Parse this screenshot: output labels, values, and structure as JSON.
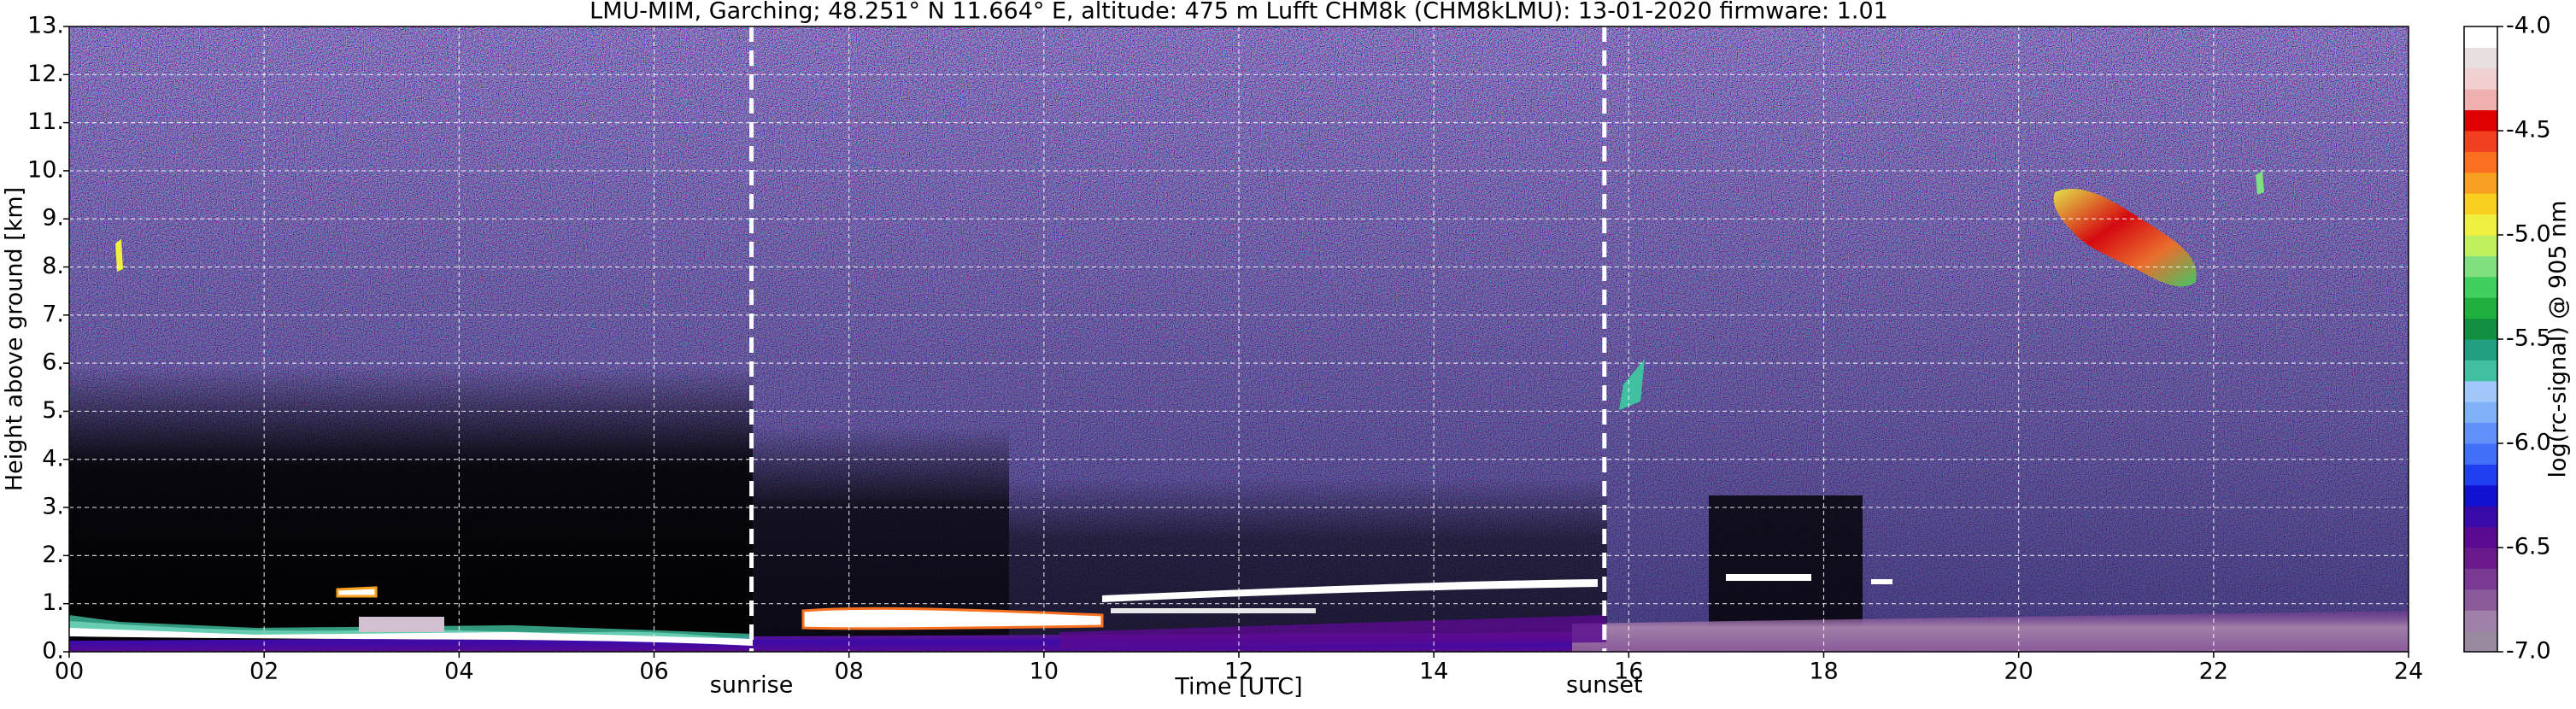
{
  "chart_data": {
    "type": "heatmap",
    "title": "LMU-MIM, Garching; 48.251° N 11.664° E, altitude: 475 m    Lufft CHM8k (CHM8kLMU): 13-01-2020    firmware: 1.01",
    "xlabel": "Time [UTC]",
    "ylabel": "Height above ground [km]",
    "xlim": [
      0,
      24
    ],
    "xticks": [
      {
        "value": 0,
        "label": "00"
      },
      {
        "value": 2,
        "label": "02"
      },
      {
        "value": 4,
        "label": "04"
      },
      {
        "value": 6,
        "label": "06"
      },
      {
        "value": 8,
        "label": "08"
      },
      10,
      12,
      14,
      16,
      18,
      20,
      22,
      24
    ],
    "ylim": [
      0,
      13
    ],
    "yticks": [
      {
        "value": 0,
        "label": "0."
      },
      {
        "value": 1,
        "label": "1."
      },
      {
        "value": 2,
        "label": "2."
      },
      {
        "value": 3,
        "label": "3."
      },
      {
        "value": 4,
        "label": "4."
      },
      {
        "value": 5,
        "label": "5."
      },
      {
        "value": 6,
        "label": "6."
      },
      {
        "value": 7,
        "label": "7."
      },
      {
        "value": 8,
        "label": "8."
      },
      {
        "value": 9,
        "label": "9."
      },
      {
        "value": 10,
        "label": "10."
      },
      {
        "value": 11,
        "label": "11."
      },
      {
        "value": 12,
        "label": "12."
      },
      {
        "value": 13,
        "label": "13."
      }
    ],
    "grid": true,
    "annotations": [
      {
        "text": "sunrise",
        "x": 7.0
      },
      {
        "text": "sunset",
        "x": 15.75
      }
    ],
    "colorbar": {
      "label": "log(rc-signal) @ 905 nm",
      "lim": [
        -7,
        -4
      ],
      "ticks": [
        {
          "value": -7,
          "label": "-7.0"
        },
        {
          "value": -6.5,
          "label": "-6.5"
        },
        {
          "value": -6,
          "label": "-6.0"
        },
        {
          "value": -5.5,
          "label": "-5.5"
        },
        {
          "value": -5,
          "label": "-5.0"
        },
        {
          "value": -4.5,
          "label": "-4.5"
        },
        {
          "value": -4,
          "label": "-4.0"
        }
      ],
      "colors": [
        "#9a8aa0",
        "#a07fa8",
        "#8a5a9a",
        "#7a3a94",
        "#6a1a8a",
        "#5a0a90",
        "#3a0aa8",
        "#1010d0",
        "#2040f0",
        "#4070f8",
        "#6090f8",
        "#80b0f8",
        "#a0c8f8",
        "#40c0a0",
        "#20a080",
        "#109040",
        "#20b040",
        "#40d060",
        "#80e080",
        "#c0f060",
        "#f0f040",
        "#f8d020",
        "#f8a020",
        "#f87020",
        "#f04020",
        "#e00000",
        "#f0b0b0",
        "#f0d0d0",
        "#e8e0e0",
        "#ffffff"
      ]
    }
  }
}
